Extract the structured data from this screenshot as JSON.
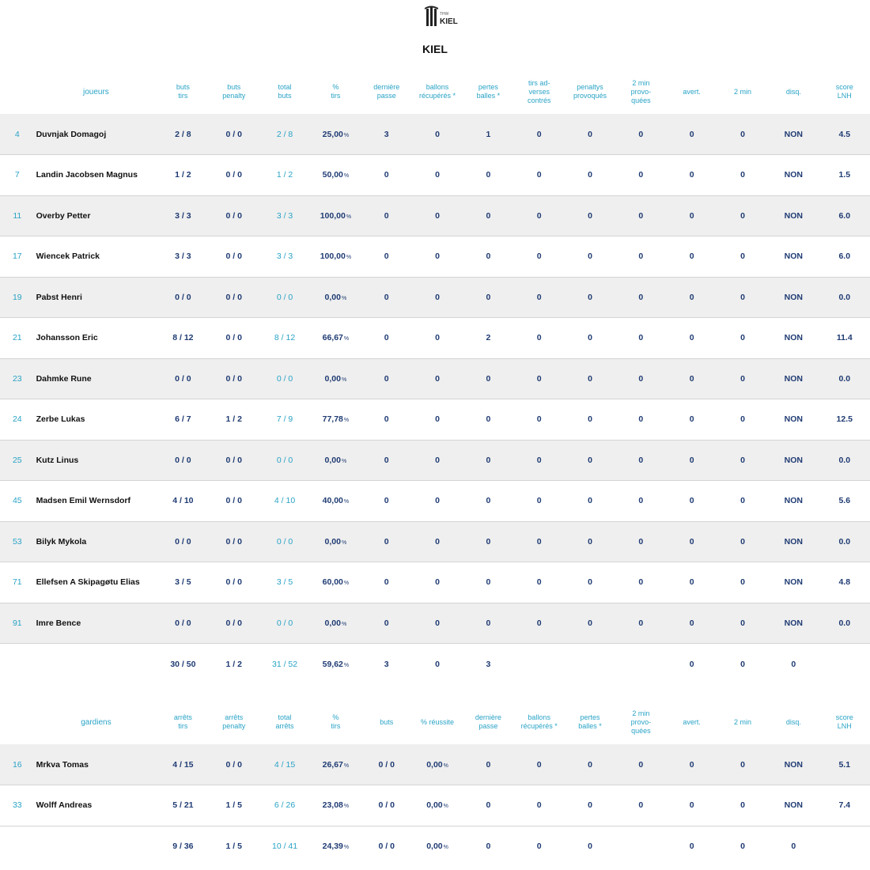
{
  "team": {
    "logo_text": "KIEL",
    "logo_subtext": "THW",
    "name": "KIEL"
  },
  "players": {
    "headers": {
      "name": "joueurs",
      "c1": "buts\ntirs",
      "c2": "buts\npenalty",
      "c3": "total\nbuts",
      "c4": "%\ntirs",
      "c5": "dernière\npasse",
      "c6": "ballons\nrécupérés *",
      "c7": "pertes\nballes *",
      "c8": "tirs ad-\nverses\ncontrés",
      "c9": "penaltys\nprovoqués",
      "c10": "2 min\nprovo-\nquées",
      "c11": "avert.",
      "c12": "2 min",
      "c13": "disq.",
      "c14": "score\nLNH"
    },
    "rows": [
      {
        "num": "4",
        "name": "Duvnjak Domagoj",
        "c1": "2 / 8",
        "c2": "0 / 0",
        "c3": "2 / 8",
        "c4": "25,00",
        "c5": "3",
        "c6": "0",
        "c7": "1",
        "c8": "0",
        "c9": "0",
        "c10": "0",
        "c11": "0",
        "c12": "0",
        "c13": "NON",
        "c14": "4.5"
      },
      {
        "num": "7",
        "name": "Landin Jacobsen Magnus",
        "c1": "1 / 2",
        "c2": "0 / 0",
        "c3": "1 / 2",
        "c4": "50,00",
        "c5": "0",
        "c6": "0",
        "c7": "0",
        "c8": "0",
        "c9": "0",
        "c10": "0",
        "c11": "0",
        "c12": "0",
        "c13": "NON",
        "c14": "1.5"
      },
      {
        "num": "11",
        "name": "Overby Petter",
        "c1": "3 / 3",
        "c2": "0 / 0",
        "c3": "3 / 3",
        "c4": "100,00",
        "c5": "0",
        "c6": "0",
        "c7": "0",
        "c8": "0",
        "c9": "0",
        "c10": "0",
        "c11": "0",
        "c12": "0",
        "c13": "NON",
        "c14": "6.0"
      },
      {
        "num": "17",
        "name": "Wiencek Patrick",
        "c1": "3 / 3",
        "c2": "0 / 0",
        "c3": "3 / 3",
        "c4": "100,00",
        "c5": "0",
        "c6": "0",
        "c7": "0",
        "c8": "0",
        "c9": "0",
        "c10": "0",
        "c11": "0",
        "c12": "0",
        "c13": "NON",
        "c14": "6.0"
      },
      {
        "num": "19",
        "name": "Pabst Henri",
        "c1": "0 / 0",
        "c2": "0 / 0",
        "c3": "0 / 0",
        "c4": "0,00",
        "c5": "0",
        "c6": "0",
        "c7": "0",
        "c8": "0",
        "c9": "0",
        "c10": "0",
        "c11": "0",
        "c12": "0",
        "c13": "NON",
        "c14": "0.0"
      },
      {
        "num": "21",
        "name": "Johansson Eric",
        "c1": "8 / 12",
        "c2": "0 / 0",
        "c3": "8 / 12",
        "c4": "66,67",
        "c5": "0",
        "c6": "0",
        "c7": "2",
        "c8": "0",
        "c9": "0",
        "c10": "0",
        "c11": "0",
        "c12": "0",
        "c13": "NON",
        "c14": "11.4"
      },
      {
        "num": "23",
        "name": "Dahmke Rune",
        "c1": "0 / 0",
        "c2": "0 / 0",
        "c3": "0 / 0",
        "c4": "0,00",
        "c5": "0",
        "c6": "0",
        "c7": "0",
        "c8": "0",
        "c9": "0",
        "c10": "0",
        "c11": "0",
        "c12": "0",
        "c13": "NON",
        "c14": "0.0"
      },
      {
        "num": "24",
        "name": "Zerbe Lukas",
        "c1": "6 / 7",
        "c2": "1 / 2",
        "c3": "7 / 9",
        "c4": "77,78",
        "c5": "0",
        "c6": "0",
        "c7": "0",
        "c8": "0",
        "c9": "0",
        "c10": "0",
        "c11": "0",
        "c12": "0",
        "c13": "NON",
        "c14": "12.5"
      },
      {
        "num": "25",
        "name": "Kutz Linus",
        "c1": "0 / 0",
        "c2": "0 / 0",
        "c3": "0 / 0",
        "c4": "0,00",
        "c5": "0",
        "c6": "0",
        "c7": "0",
        "c8": "0",
        "c9": "0",
        "c10": "0",
        "c11": "0",
        "c12": "0",
        "c13": "NON",
        "c14": "0.0"
      },
      {
        "num": "45",
        "name": "Madsen Emil Wernsdorf",
        "c1": "4 / 10",
        "c2": "0 / 0",
        "c3": "4 / 10",
        "c4": "40,00",
        "c5": "0",
        "c6": "0",
        "c7": "0",
        "c8": "0",
        "c9": "0",
        "c10": "0",
        "c11": "0",
        "c12": "0",
        "c13": "NON",
        "c14": "5.6"
      },
      {
        "num": "53",
        "name": "Bilyk Mykola",
        "c1": "0 / 0",
        "c2": "0 / 0",
        "c3": "0 / 0",
        "c4": "0,00",
        "c5": "0",
        "c6": "0",
        "c7": "0",
        "c8": "0",
        "c9": "0",
        "c10": "0",
        "c11": "0",
        "c12": "0",
        "c13": "NON",
        "c14": "0.0"
      },
      {
        "num": "71",
        "name": "Ellefsen A Skipagøtu Elias",
        "c1": "3 / 5",
        "c2": "0 / 0",
        "c3": "3 / 5",
        "c4": "60,00",
        "c5": "0",
        "c6": "0",
        "c7": "0",
        "c8": "0",
        "c9": "0",
        "c10": "0",
        "c11": "0",
        "c12": "0",
        "c13": "NON",
        "c14": "4.8"
      },
      {
        "num": "91",
        "name": "Imre Bence",
        "c1": "0 / 0",
        "c2": "0 / 0",
        "c3": "0 / 0",
        "c4": "0,00",
        "c5": "0",
        "c6": "0",
        "c7": "0",
        "c8": "0",
        "c9": "0",
        "c10": "0",
        "c11": "0",
        "c12": "0",
        "c13": "NON",
        "c14": "0.0"
      }
    ],
    "totals": {
      "c1": "30 / 50",
      "c2": "1 / 2",
      "c3": "31 / 52",
      "c4": "59,62",
      "c5": "3",
      "c6": "0",
      "c7": "3",
      "c8": "",
      "c9": "",
      "c10": "",
      "c11": "0",
      "c12": "0",
      "c13": "0",
      "c14": ""
    }
  },
  "keepers": {
    "headers": {
      "name": "gardiens",
      "c1": "arrêts\ntirs",
      "c2": "arrêts\npenalty",
      "c3": "total\narrêts",
      "c4": "%\ntirs",
      "c5": "buts",
      "c6": "% réussite",
      "c7": "dernière\npasse",
      "c8": "ballons\nrécupérés *",
      "c9": "pertes\nballes *",
      "c10": "2 min\nprovo-\nquées",
      "c11": "avert.",
      "c12": "2 min",
      "c13": "disq.",
      "c14": "score\nLNH"
    },
    "rows": [
      {
        "num": "16",
        "name": "Mrkva Tomas",
        "c1": "4 / 15",
        "c2": "0 / 0",
        "c3": "4 / 15",
        "c4": "26,67",
        "c5": "0 / 0",
        "c6": "0,00",
        "c7": "0",
        "c8": "0",
        "c9": "0",
        "c10": "0",
        "c11": "0",
        "c12": "0",
        "c13": "NON",
        "c14": "5.1"
      },
      {
        "num": "33",
        "name": "Wolff Andreas",
        "c1": "5 / 21",
        "c2": "1 / 5",
        "c3": "6 / 26",
        "c4": "23,08",
        "c5": "0 / 0",
        "c6": "0,00",
        "c7": "0",
        "c8": "0",
        "c9": "0",
        "c10": "0",
        "c11": "0",
        "c12": "0",
        "c13": "NON",
        "c14": "7.4"
      }
    ],
    "totals": {
      "c1": "9 / 36",
      "c2": "1 / 5",
      "c3": "10 / 41",
      "c4": "24,39",
      "c5": "0 / 0",
      "c6": "0,00",
      "c7": "0",
      "c8": "0",
      "c9": "0",
      "c10": "",
      "c11": "0",
      "c12": "0",
      "c13": "0",
      "c14": ""
    }
  },
  "percent_symbol": "%",
  "colors": {
    "accent": "#29a3c6",
    "value": "#1f3b73",
    "row_alt": "#efefef"
  }
}
